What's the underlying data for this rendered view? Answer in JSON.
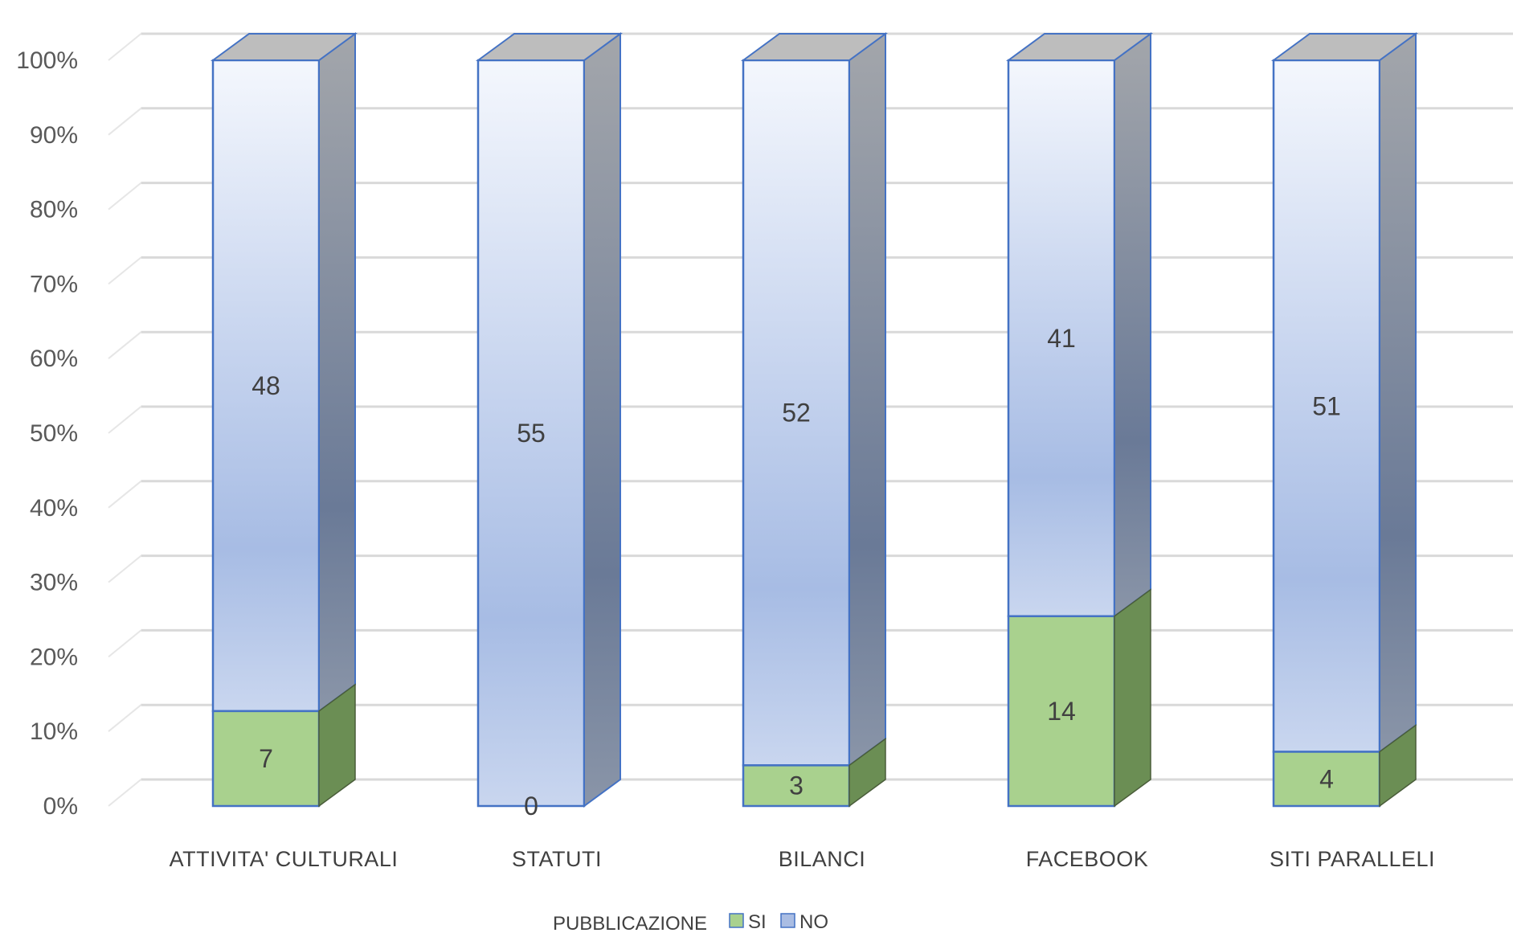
{
  "chart_data": {
    "type": "bar",
    "stacked": "percent",
    "style": "3d-column",
    "categories": [
      "ATTIVITA' CULTURALI",
      "STATUTI",
      "BILANCI",
      "FACEBOOK",
      "SITI PARALLELI"
    ],
    "series": [
      {
        "name": "SI",
        "values": [
          7,
          0,
          3,
          14,
          4
        ],
        "color": "#a9d18e",
        "side_color": "#6b8e54"
      },
      {
        "name": "NO",
        "values": [
          48,
          55,
          52,
          41,
          51
        ],
        "color": "#aabde3",
        "side_color": "#6b7a96",
        "top_color": "#bdbdbd"
      }
    ],
    "y_ticks": [
      "0%",
      "10%",
      "20%",
      "30%",
      "40%",
      "50%",
      "60%",
      "70%",
      "80%",
      "90%",
      "100%"
    ],
    "ylim": [
      0,
      100
    ],
    "grid": true,
    "legend": {
      "title": "PUBBLICAZIONE",
      "placement": "bottom"
    },
    "bar_outline_color": "#4472c4",
    "grid_color": "#d9d9d9",
    "text_color": "#404040"
  }
}
